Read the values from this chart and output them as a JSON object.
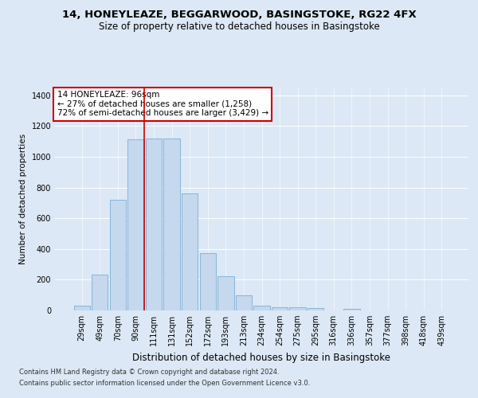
{
  "title1": "14, HONEYLEAZE, BEGGARWOOD, BASINGSTOKE, RG22 4FX",
  "title2": "Size of property relative to detached houses in Basingstoke",
  "xlabel": "Distribution of detached houses by size in Basingstoke",
  "ylabel": "Number of detached properties",
  "footnote1": "Contains HM Land Registry data © Crown copyright and database right 2024.",
  "footnote2": "Contains public sector information licensed under the Open Government Licence v3.0.",
  "annotation_line1": "14 HONEYLEAZE: 96sqm",
  "annotation_line2": "← 27% of detached houses are smaller (1,258)",
  "annotation_line3": "72% of semi-detached houses are larger (3,429) →",
  "bar_labels": [
    "29sqm",
    "49sqm",
    "70sqm",
    "90sqm",
    "111sqm",
    "131sqm",
    "152sqm",
    "172sqm",
    "193sqm",
    "213sqm",
    "234sqm",
    "254sqm",
    "275sqm",
    "295sqm",
    "316sqm",
    "336sqm",
    "357sqm",
    "377sqm",
    "398sqm",
    "418sqm",
    "439sqm"
  ],
  "bar_values": [
    30,
    235,
    720,
    1115,
    1120,
    1120,
    760,
    375,
    225,
    100,
    30,
    22,
    20,
    15,
    0,
    12,
    0,
    0,
    0,
    0,
    0
  ],
  "bar_color": "#c5d8ee",
  "bar_edge_color": "#7bafd4",
  "vline_color": "#cc0000",
  "vline_bin_index": 3,
  "background_color": "#dce8f5",
  "axes_bg_color": "#dce8f5",
  "ylim": [
    0,
    1450
  ],
  "yticks": [
    0,
    200,
    400,
    600,
    800,
    1000,
    1200,
    1400
  ],
  "title1_fontsize": 9.5,
  "title2_fontsize": 8.5,
  "xlabel_fontsize": 8.5,
  "ylabel_fontsize": 7.5,
  "tick_fontsize": 7,
  "annotation_fontsize": 7.5,
  "footnote_fontsize": 6
}
